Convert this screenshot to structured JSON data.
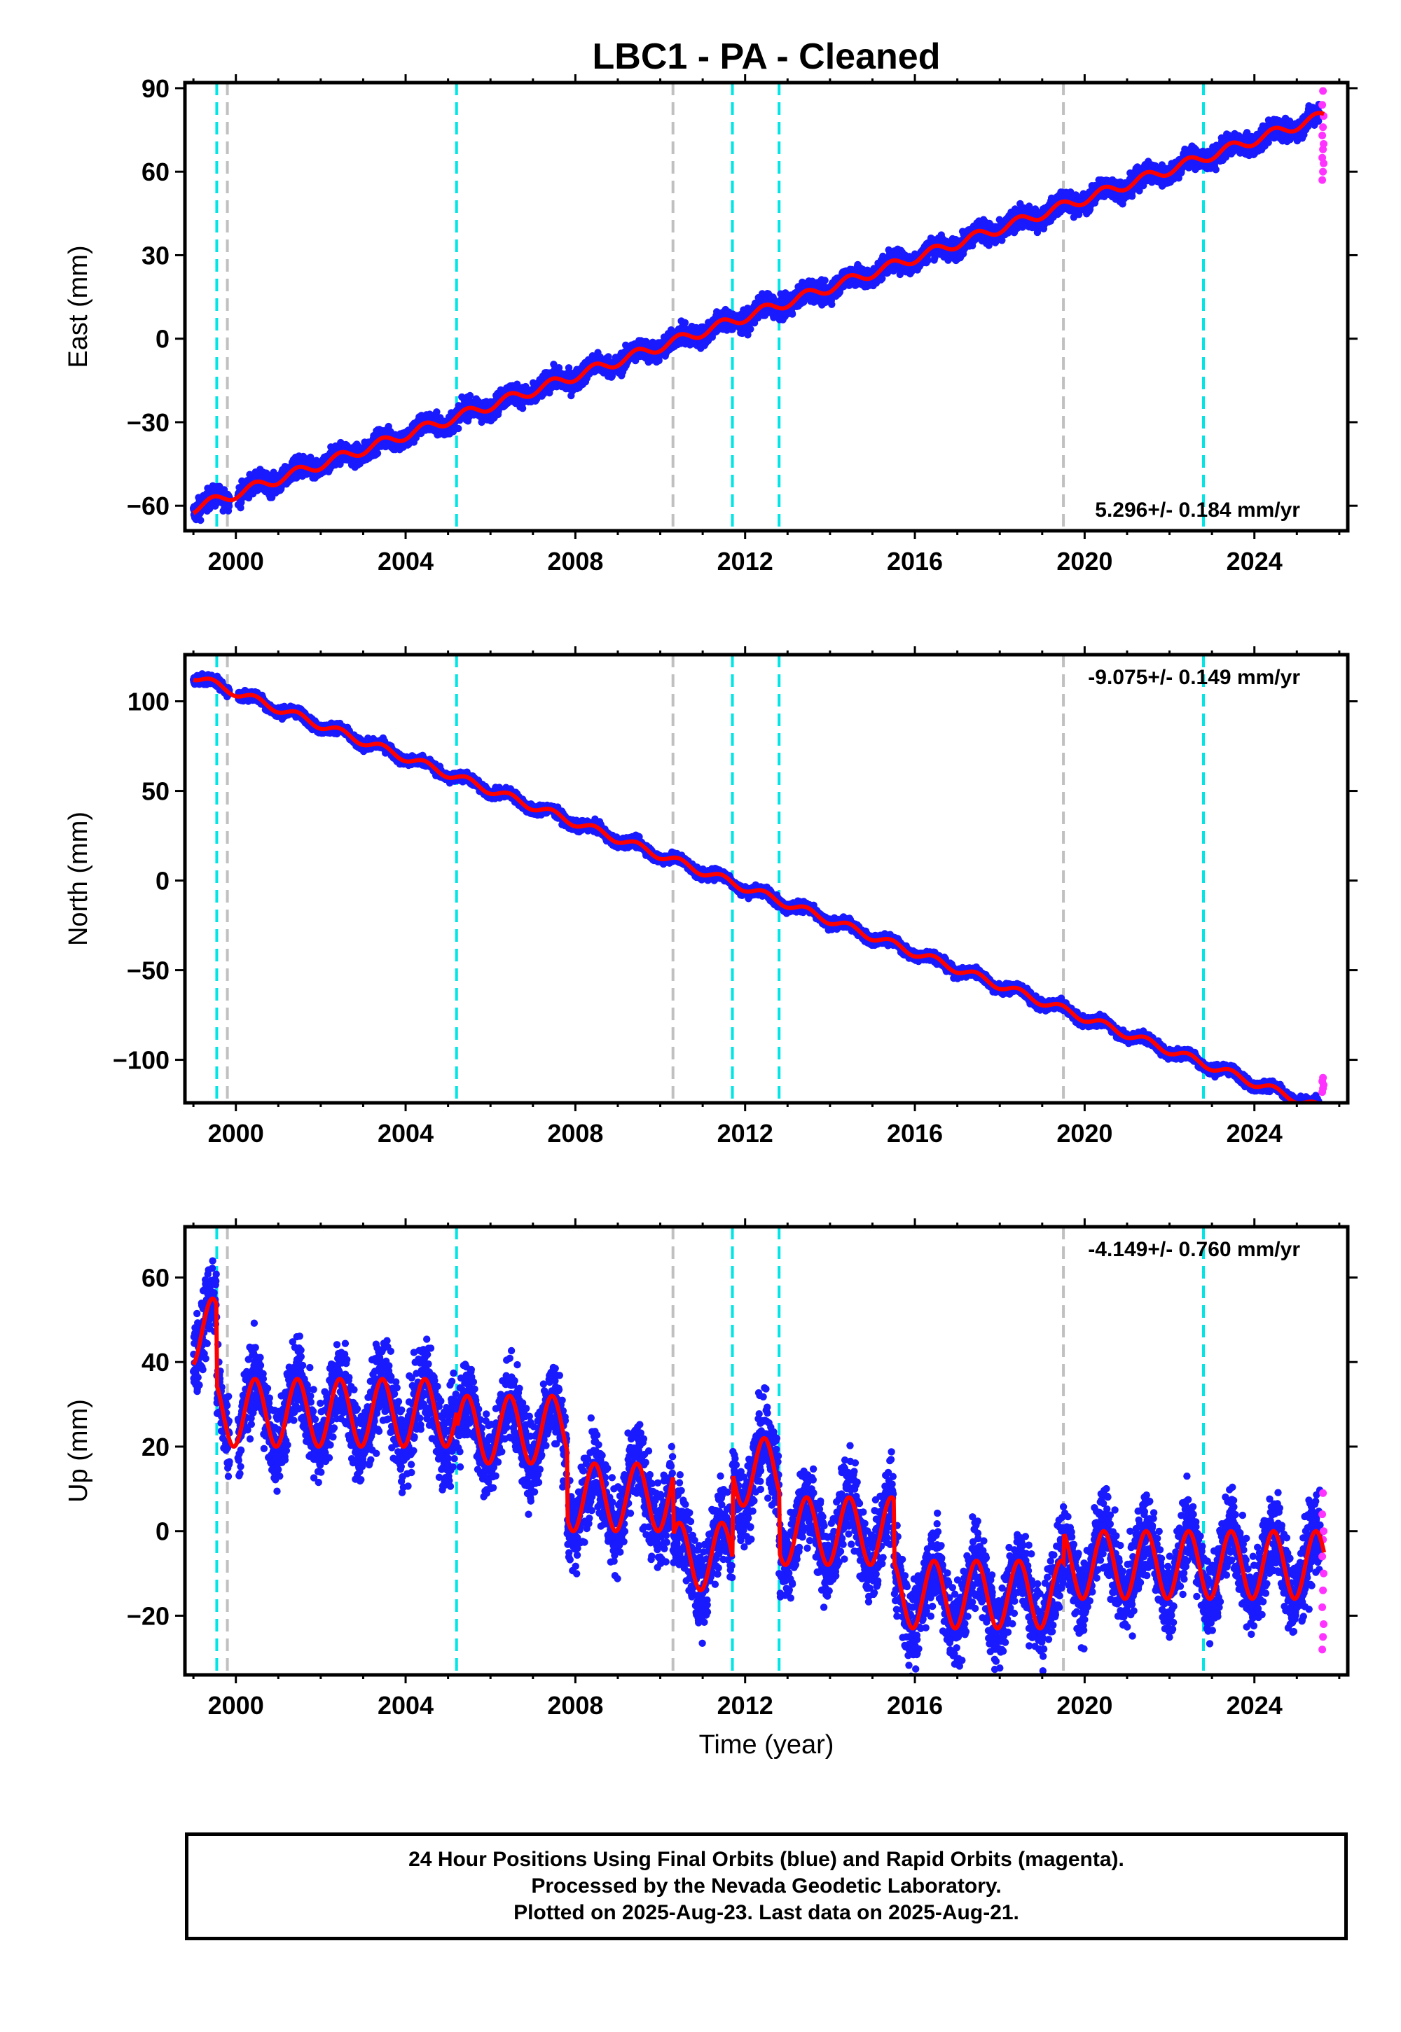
{
  "title": "LBC1  - PA - Cleaned",
  "footer": {
    "line1": "24 Hour Positions Using Final Orbits (blue) and Rapid Orbits (magenta).",
    "line2": "Processed by the Nevada Geodetic Laboratory.",
    "line3": "Plotted on 2025-Aug-23. Last data on 2025-Aug-21."
  },
  "colors": {
    "final_orbits": "#1a1aff",
    "rapid_orbits": "#ff33ff",
    "model": "#ff0000",
    "cyan_lines": "#00e5e5",
    "gray_lines": "#c0c0c0"
  },
  "chart_data": [
    {
      "type": "scatter",
      "ylabel": "East (mm)",
      "xlabel": "",
      "xlim": [
        1998.8,
        2026.2
      ],
      "ylim": [
        -69,
        92
      ],
      "xticks": [
        2000,
        2004,
        2008,
        2012,
        2016,
        2020,
        2024
      ],
      "yticks": [
        -60,
        -30,
        0,
        30,
        60,
        90
      ],
      "rate_label": "5.296+/- 0.184 mm/yr",
      "rate_position": "bottom-right",
      "start_value": -61,
      "trend_mm_per_yr": 5.296,
      "seasonal_amplitude": 1.8,
      "scatter": 2.6,
      "offsets": [],
      "rapid_points": [
        57,
        60,
        63,
        65,
        68,
        70,
        73,
        76,
        80,
        84,
        89
      ],
      "cyan_lines": [
        1999.55,
        2005.2,
        2011.7,
        2012.8,
        2022.8
      ],
      "gray_lines": [
        1999.8,
        2010.3,
        2019.5
      ]
    },
    {
      "type": "scatter",
      "ylabel": "North (mm)",
      "xlabel": "",
      "xlim": [
        1998.8,
        2026.2
      ],
      "ylim": [
        -124,
        126
      ],
      "xticks": [
        2000,
        2004,
        2008,
        2012,
        2016,
        2020,
        2024
      ],
      "yticks": [
        -100,
        -50,
        0,
        50,
        100
      ],
      "rate_label": "-9.075+/- 0.149 mm/yr",
      "rate_position": "top-right",
      "start_value": 114,
      "trend_mm_per_yr": -9.075,
      "seasonal_amplitude": 2.2,
      "scatter": 2.0,
      "offsets": [],
      "rapid_points": [
        -118,
        -116,
        -114,
        -112,
        -110
      ],
      "cyan_lines": [
        1999.55,
        2005.2,
        2011.7,
        2012.8,
        2022.8
      ],
      "gray_lines": [
        1999.8,
        2010.3,
        2019.5
      ]
    },
    {
      "type": "scatter",
      "ylabel": "Up (mm)",
      "xlabel": "Time (year)",
      "xlim": [
        1998.8,
        2026.2
      ],
      "ylim": [
        -34,
        72
      ],
      "xticks": [
        2000,
        2004,
        2008,
        2012,
        2016,
        2020,
        2024
      ],
      "yticks": [
        -20,
        0,
        20,
        40,
        60
      ],
      "rate_label": "-4.149+/- 0.760 mm/yr",
      "rate_position": "top-right",
      "model_levels": [
        {
          "from": 1999.0,
          "to": 1999.55,
          "level": 47
        },
        {
          "from": 1999.55,
          "to": 2005.2,
          "level": 28
        },
        {
          "from": 2005.2,
          "to": 2007.8,
          "level": 24
        },
        {
          "from": 2007.8,
          "to": 2010.3,
          "level": 8
        },
        {
          "from": 2010.3,
          "to": 2011.7,
          "level": -6
        },
        {
          "from": 2011.7,
          "to": 2012.8,
          "level": 14
        },
        {
          "from": 2012.8,
          "to": 2015.5,
          "level": 0
        },
        {
          "from": 2015.5,
          "to": 2019.5,
          "level": -15
        },
        {
          "from": 2019.5,
          "to": 2025.7,
          "level": -8
        }
      ],
      "seasonal_amplitude": 8,
      "scatter": 7,
      "rapid_points": [
        -28,
        -25,
        -22,
        -18,
        -14,
        -10,
        -6,
        -2,
        0,
        4,
        9
      ],
      "cyan_lines": [
        1999.55,
        2005.2,
        2011.7,
        2012.8,
        2022.8
      ],
      "gray_lines": [
        1999.8,
        2010.3,
        2019.5
      ]
    }
  ]
}
